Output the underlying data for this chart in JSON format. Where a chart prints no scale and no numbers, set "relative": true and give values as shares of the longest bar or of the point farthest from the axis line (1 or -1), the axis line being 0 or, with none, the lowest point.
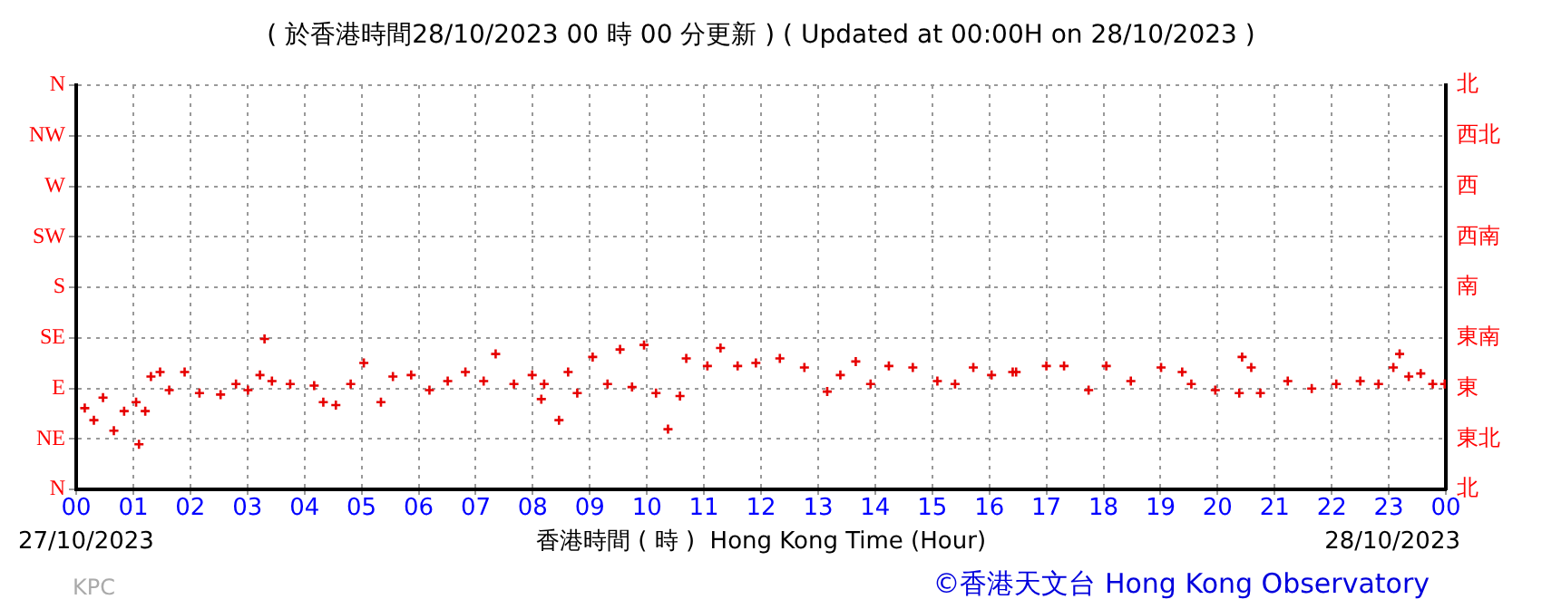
{
  "chart_data": {
    "type": "scatter",
    "title": "( 於香港時間28/10/2023 00 時 00 分更新 ) ( Updated at 00:00H on 28/10/2023 )",
    "xlabel": "香港時間 ( 時 )  Hong Kong Time (Hour)",
    "annotations": [
      "27/10/2023",
      "28/10/2023",
      "KPC",
      "©香港天文台 Hong Kong Observatory",
      "N",
      "NE",
      "E",
      "SE",
      "S",
      "SW",
      "W",
      "NW",
      "N",
      "北",
      "東北",
      "東",
      "東南",
      "南",
      "西南",
      "西",
      "西北",
      "北"
    ],
    "relative": true,
    "xlim": [
      0,
      24
    ],
    "xticks": [
      {
        "value": 0,
        "label": "00"
      },
      {
        "value": 1,
        "label": "01"
      },
      {
        "value": 2,
        "label": "02"
      },
      {
        "value": 3,
        "label": "03"
      },
      {
        "value": 4,
        "label": "04"
      },
      {
        "value": 5,
        "label": "05"
      },
      {
        "value": 6,
        "label": "06"
      },
      {
        "value": 7,
        "label": "07"
      },
      {
        "value": 8,
        "label": "08"
      },
      {
        "value": 9,
        "label": "09"
      },
      {
        "value": 10,
        "label": "10"
      },
      {
        "value": 11,
        "label": "11"
      },
      {
        "value": 12,
        "label": "12"
      },
      {
        "value": 13,
        "label": "13"
      },
      {
        "value": 14,
        "label": "14"
      },
      {
        "value": 15,
        "label": "15"
      },
      {
        "value": 16,
        "label": "16"
      },
      {
        "value": 17,
        "label": "17"
      },
      {
        "value": 18,
        "label": "18"
      },
      {
        "value": 19,
        "label": "19"
      },
      {
        "value": 20,
        "label": "20"
      },
      {
        "value": 21,
        "label": "21"
      },
      {
        "value": 22,
        "label": "22"
      },
      {
        "value": 23,
        "label": "23"
      },
      {
        "value": 24,
        "label": "00"
      }
    ],
    "grid": true,
    "legend": false,
    "marker": "cross",
    "series": [
      {
        "color": "#e60000",
        "x": [
          0.15,
          0.31,
          0.47,
          0.66,
          0.84,
          1.05,
          1.1,
          1.21,
          1.31,
          1.47,
          1.63,
          1.9,
          2.16,
          2.53,
          2.8,
          3.01,
          3.22,
          3.3,
          3.43,
          3.75,
          4.17,
          4.33,
          4.55,
          4.81,
          5.04,
          5.34,
          5.55,
          5.87,
          6.19,
          6.51,
          6.82,
          7.14,
          7.35,
          7.67,
          7.99,
          8.15,
          8.2,
          8.46,
          8.62,
          8.78,
          9.05,
          9.31,
          9.53,
          9.74,
          9.95,
          10.16,
          10.37,
          10.58,
          10.69,
          11.06,
          11.29,
          11.59,
          11.91,
          12.33,
          12.76,
          13.16,
          13.39,
          13.66,
          13.92,
          14.24,
          14.66,
          15.09,
          15.4,
          15.72,
          16.04,
          16.41,
          16.47,
          17.0,
          17.31,
          17.74,
          18.05,
          18.48,
          19.01,
          19.38,
          19.54,
          19.96,
          20.38,
          20.43,
          20.59,
          20.75,
          21.23,
          21.65,
          22.08,
          22.5,
          22.82,
          23.08,
          23.19,
          23.35,
          23.56,
          23.77,
          23.98
        ],
        "values": [
          0.54,
          0.46,
          0.61,
          0.39,
          0.52,
          0.58,
          0.3,
          0.52,
          0.75,
          0.78,
          0.66,
          0.78,
          0.64,
          0.63,
          0.7,
          0.66,
          0.76,
          1,
          0.72,
          0.7,
          0.69,
          0.58,
          0.56,
          0.7,
          0.84,
          0.58,
          0.75,
          0.76,
          0.66,
          0.72,
          0.78,
          0.72,
          0.9,
          0.7,
          0.76,
          0.6,
          0.7,
          0.46,
          0.78,
          0.64,
          0.88,
          0.7,
          0.93,
          0.68,
          0.96,
          0.64,
          0.4,
          0.62,
          0.87,
          0.82,
          0.94,
          0.82,
          0.84,
          0.87,
          0.81,
          0.65,
          0.76,
          0.85,
          0.7,
          0.82,
          0.81,
          0.72,
          0.7,
          0.81,
          0.76,
          0.78,
          0.78,
          0.82,
          0.82,
          0.66,
          0.82,
          0.72,
          0.81,
          0.78,
          0.7,
          0.66,
          0.64,
          0.88,
          0.81,
          0.64,
          0.72,
          0.67,
          0.7,
          0.72,
          0.7,
          0.81,
          0.9,
          0.75,
          0.77,
          0.7,
          0.7
        ]
      }
    ]
  }
}
